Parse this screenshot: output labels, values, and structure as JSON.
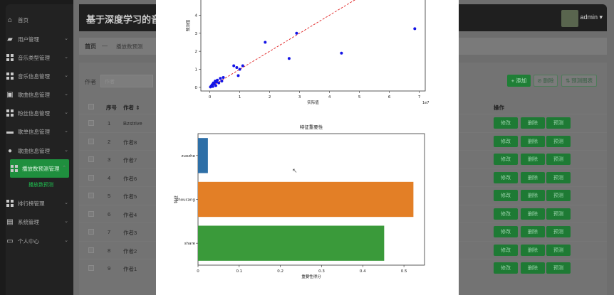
{
  "sidebar": {
    "items": [
      {
        "icon": "home-icon",
        "label": "首页",
        "chev": ""
      },
      {
        "icon": "user-manage-icon",
        "label": "用户管理",
        "chev": "⌄"
      },
      {
        "icon": "grid-icon",
        "label": "音乐类型管理",
        "chev": "⌄"
      },
      {
        "icon": "grid-icon",
        "label": "音乐信息管理",
        "chev": "⌄"
      },
      {
        "icon": "briefcase-icon",
        "label": "歌曲信息管理",
        "chev": "⌄"
      },
      {
        "icon": "grid-icon",
        "label": "粉丝信息管理",
        "chev": "⌄"
      },
      {
        "icon": "monitor-icon",
        "label": "歌单信息管理",
        "chev": "⌄"
      },
      {
        "icon": "person-icon",
        "label": "歌曲信息管理",
        "chev": "⌄"
      },
      {
        "icon": "grid-icon",
        "label": "播放数预测管理",
        "chev": "⌃"
      },
      {
        "icon": "grid-icon",
        "label": "排行榜管理",
        "chev": "⌄"
      },
      {
        "icon": "clipboard-icon",
        "label": "系统管理",
        "chev": "⌄"
      },
      {
        "icon": "window-icon",
        "label": "个人中心",
        "chev": "⌄"
      }
    ],
    "sub_active": "播放数预测"
  },
  "header": {
    "title": "基于深度学习的音",
    "user": "admin ▾"
  },
  "breadcrumb": {
    "home": "首页",
    "sep": "—",
    "current": "播放数预测"
  },
  "toolbar": {
    "search_label": "作者",
    "search_placeholder": "作者",
    "add": "+ 添加",
    "delete": "⊘ 删除",
    "chart": "⇅ 预测图表"
  },
  "table": {
    "headers": {
      "no": "序号",
      "author": "作者 ⇕",
      "ops": "操作"
    },
    "rows": [
      {
        "no": "1",
        "author": "Bzstrive"
      },
      {
        "no": "2",
        "author": "作者8"
      },
      {
        "no": "3",
        "author": "作者7"
      },
      {
        "no": "4",
        "author": "作者6"
      },
      {
        "no": "5",
        "author": "作者5"
      },
      {
        "no": "6",
        "author": "作者4"
      },
      {
        "no": "7",
        "author": "作者3"
      },
      {
        "no": "8",
        "author": "作者2"
      },
      {
        "no": "9",
        "author": "作者1"
      }
    ],
    "row_buttons": [
      "修改",
      "删除",
      "预测"
    ]
  },
  "chart_data": [
    {
      "type": "scatter",
      "title": "",
      "xlabel": "实际值",
      "ylabel": "预测值",
      "x_offset_label": "1e7",
      "xlim": [
        -0.3,
        7.2
      ],
      "ylim": [
        -0.2,
        5.0
      ],
      "xticks": [
        0,
        1,
        2,
        3,
        4,
        5,
        6,
        7
      ],
      "yticks": [
        0,
        1,
        2,
        3,
        4
      ],
      "points": [
        [
          0.02,
          0.02
        ],
        [
          0.05,
          0.08
        ],
        [
          0.08,
          0.15
        ],
        [
          0.1,
          0.05
        ],
        [
          0.12,
          0.25
        ],
        [
          0.15,
          0.2
        ],
        [
          0.18,
          0.35
        ],
        [
          0.2,
          0.1
        ],
        [
          0.22,
          0.3
        ],
        [
          0.25,
          0.4
        ],
        [
          0.3,
          0.25
        ],
        [
          0.35,
          0.5
        ],
        [
          0.4,
          0.35
        ],
        [
          0.45,
          0.55
        ],
        [
          0.8,
          1.2
        ],
        [
          0.9,
          1.1
        ],
        [
          0.95,
          0.65
        ],
        [
          1.0,
          1.0
        ],
        [
          1.1,
          1.2
        ],
        [
          1.85,
          2.5
        ],
        [
          2.65,
          1.6
        ],
        [
          2.9,
          3.0
        ],
        [
          4.4,
          1.9
        ],
        [
          6.85,
          3.25
        ]
      ],
      "reference_line": "y = x",
      "point_color": "#1414e6",
      "line_color": "#e02020"
    },
    {
      "type": "bar",
      "orientation": "horizontal",
      "title": "特征重要性",
      "xlabel": "重要性得分",
      "ylabel": "特征",
      "categories": [
        "zuozhe",
        "shoucang",
        "share"
      ],
      "values": [
        0.024,
        0.523,
        0.452
      ],
      "colors": [
        "#2e6fa7",
        "#e37f26",
        "#3a9a3a"
      ],
      "xlim": [
        0,
        0.55
      ],
      "xticks": [
        0,
        0.1,
        0.2,
        0.3,
        0.4,
        0.5
      ]
    }
  ]
}
